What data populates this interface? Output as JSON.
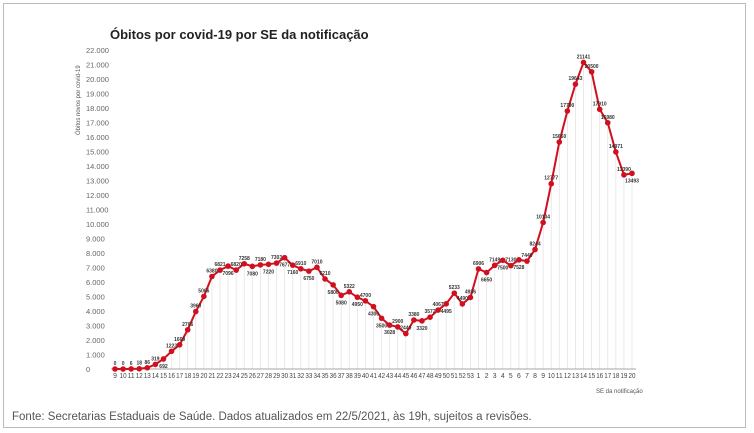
{
  "chart_data": {
    "type": "line",
    "title": "Óbitos por covid-19 por SE da notificação",
    "xlabel": "SE da notificação",
    "ylabel": "Óbitos novos por covid-19",
    "ylim": [
      0,
      22000
    ],
    "yticks": [
      "0",
      "1.000",
      "2.000",
      "3.000",
      "4.000",
      "5.000",
      "6.000",
      "7.000",
      "8.000",
      "9.000",
      "10.000",
      "11.000",
      "12.000",
      "13.000",
      "14.000",
      "15.000",
      "16.000",
      "17.000",
      "18.000",
      "19.000",
      "20.000",
      "21.000",
      "22.000"
    ],
    "grid": "vertical",
    "color": "#d0101e",
    "categories": [
      "9",
      "10",
      "11",
      "12",
      "13",
      "14",
      "15",
      "16",
      "17",
      "18",
      "19",
      "20",
      "21",
      "22",
      "23",
      "24",
      "25",
      "26",
      "27",
      "28",
      "29",
      "30",
      "31",
      "32",
      "33",
      "34",
      "35",
      "36",
      "37",
      "38",
      "39",
      "40",
      "41",
      "42",
      "43",
      "44",
      "45",
      "46",
      "47",
      "48",
      "49",
      "50",
      "51",
      "52",
      "53",
      "1",
      "2",
      "3",
      "4",
      "5",
      "6",
      "7",
      "8",
      "9",
      "10",
      "11",
      "12",
      "13",
      "14",
      "15",
      "16",
      "17",
      "18",
      "19",
      "20"
    ],
    "values": [
      0,
      0,
      6,
      18,
      86,
      319,
      692,
      1223,
      1669,
      2706,
      3960,
      5006,
      6380,
      6821,
      7096,
      6820,
      7258,
      7080,
      7180,
      7220,
      7303,
      7677,
      7160,
      6910,
      6750,
      7010,
      6210,
      5800,
      5080,
      5322,
      4950,
      4700,
      4300,
      3500,
      3028,
      2900,
      2440,
      3380,
      3320,
      3572,
      4067,
      4495,
      5233,
      4490,
      4936,
      6906,
      6650,
      7149,
      7500,
      7130,
      7528,
      7440,
      8244,
      10104,
      12777,
      15650,
      17790,
      19643,
      21141,
      20500,
      17910,
      16980,
      14971,
      13390,
      13493
    ]
  },
  "footer": "Fonte: Secretarias Estaduais de Saúde. Dados atualizados em 22/5/2021, às 19h, sujeitos a revisões."
}
